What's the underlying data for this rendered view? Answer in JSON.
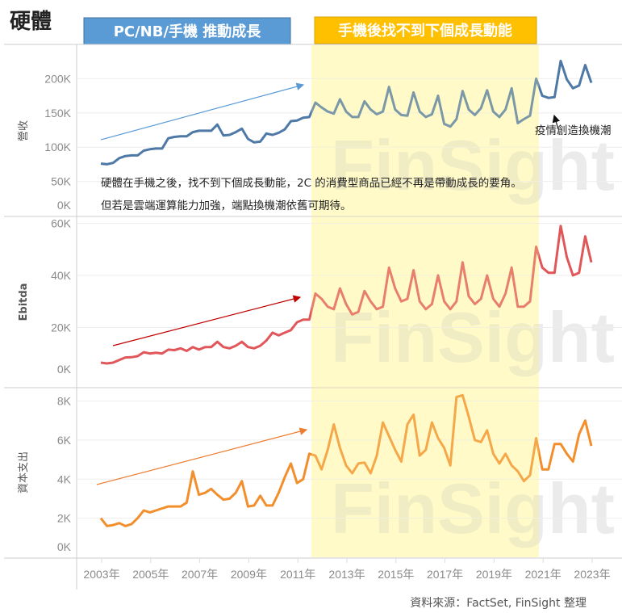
{
  "title": "硬體",
  "banners": {
    "left": "PC/NB/手機 推動成長",
    "right": "手機後找不到下個成長動能"
  },
  "annotation_covid": "疫情創造換機潮",
  "commentary": [
    "硬體在手機之後，找不到下個成長動能，2C 的消費型商品已經不再是帶動成長的要角。",
    "但若是雲端運算能力加強，端點換機潮依舊可期待。"
  ],
  "watermark": "FinSight",
  "source": "資料來源：FactSet, FinSight 整理",
  "colors": {
    "revenue": "#4e79a7",
    "ebitda": "#e15759",
    "capex": "#f28e2b",
    "banner_left": "#5b9bd5",
    "banner_right": "#ffc000",
    "highlight": "#fff9c4"
  },
  "chart_data": [
    {
      "type": "line",
      "name": "revenue",
      "ylabel": "營收",
      "ylim": [
        0,
        230
      ],
      "ticks": [
        "200K",
        "150K",
        "100K",
        "50K",
        "0K"
      ],
      "tick_values": [
        200,
        150,
        100,
        50,
        0
      ],
      "x_start": "2003Q1",
      "frequency": "quarterly",
      "values": [
        76,
        75,
        77,
        84,
        87,
        88,
        88,
        95,
        97,
        98,
        98,
        113,
        115,
        116,
        116,
        122,
        124,
        124,
        124,
        133,
        117,
        118,
        122,
        127,
        112,
        107,
        108,
        120,
        118,
        121,
        126,
        138,
        139,
        143,
        144,
        165,
        158,
        152,
        149,
        170,
        152,
        144,
        144,
        167,
        155,
        148,
        152,
        188,
        155,
        147,
        146,
        180,
        152,
        144,
        148,
        175,
        134,
        130,
        141,
        182,
        155,
        147,
        157,
        183,
        152,
        144,
        155,
        186,
        135,
        141,
        146,
        200,
        175,
        172,
        173,
        226,
        199,
        186,
        190,
        220,
        194
      ]
    },
    {
      "type": "line",
      "name": "ebitda",
      "ylabel": "Ebitda",
      "ylim": [
        0,
        62
      ],
      "ticks": [
        "60K",
        "40K",
        "20K",
        "0K"
      ],
      "tick_values": [
        60,
        40,
        20,
        0
      ],
      "x_start": "2003Q1",
      "frequency": "quarterly",
      "values": [
        6.5,
        6.2,
        6.5,
        7.5,
        8.5,
        8.6,
        9,
        10.5,
        10,
        10.3,
        10,
        11.5,
        11.3,
        12,
        11,
        12.5,
        11.5,
        12.5,
        12.5,
        14.5,
        12.5,
        12,
        13,
        14.5,
        12.5,
        12,
        13,
        15,
        18,
        17,
        18,
        19,
        22,
        23,
        23,
        33,
        31,
        28,
        27,
        35,
        29,
        25,
        26,
        34,
        30,
        27,
        28,
        43,
        35,
        30,
        31,
        42,
        30,
        27,
        29,
        40,
        30,
        27,
        30,
        45,
        32,
        29,
        31,
        40,
        31,
        28,
        33,
        43,
        28,
        28,
        30,
        51,
        43,
        41,
        41,
        59,
        47,
        40,
        41,
        55,
        45
      ]
    },
    {
      "type": "line",
      "name": "capex",
      "ylabel": "資本支出",
      "ylim": [
        0,
        8.6
      ],
      "ticks": [
        "8K",
        "6K",
        "4K",
        "2K",
        "0K"
      ],
      "tick_values": [
        8,
        6,
        4,
        2,
        0
      ],
      "x_start": "2003Q1",
      "frequency": "quarterly",
      "values": [
        2.0,
        1.6,
        1.65,
        1.75,
        1.6,
        1.7,
        2.0,
        2.4,
        2.3,
        2.4,
        2.5,
        2.6,
        2.6,
        2.6,
        2.8,
        4.4,
        3.2,
        3.3,
        3.5,
        3.2,
        2.95,
        3.0,
        3.3,
        3.9,
        2.6,
        2.65,
        3.15,
        2.65,
        2.65,
        3.3,
        4.1,
        4.8,
        3.8,
        4.0,
        5.3,
        5.2,
        4.5,
        5.5,
        6.8,
        5.6,
        4.7,
        4.3,
        4.8,
        4.85,
        4.3,
        5.2,
        6.9,
        6.2,
        5.5,
        4.9,
        6.8,
        7.3,
        5.2,
        5.5,
        6.9,
        6.1,
        5.6,
        4.7,
        8.2,
        8.3,
        7.2,
        6.0,
        5.9,
        6.5,
        5.3,
        4.8,
        5.3,
        4.7,
        4.4,
        3.9,
        4.2,
        6.1,
        4.5,
        4.5,
        5.8,
        5.8,
        5.3,
        4.9,
        6.3,
        7.0,
        5.7
      ]
    }
  ],
  "x_ticks": [
    "2003年",
    "2005年",
    "2007年",
    "2009年",
    "2011年",
    "2013年",
    "2015年",
    "2017年",
    "2019年",
    "2021年",
    "2023年"
  ],
  "highlight_range": [
    "2011Q4",
    "2020Q4"
  ]
}
